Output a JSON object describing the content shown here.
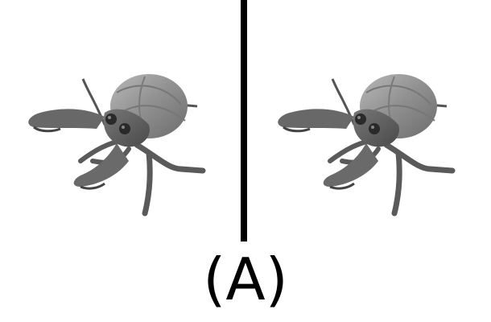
{
  "figure": {
    "caption": "(A)",
    "divider_color": "#000000",
    "panels": [
      {
        "icon": "hermit-crab-icon"
      },
      {
        "icon": "hermit-crab-icon"
      }
    ]
  }
}
